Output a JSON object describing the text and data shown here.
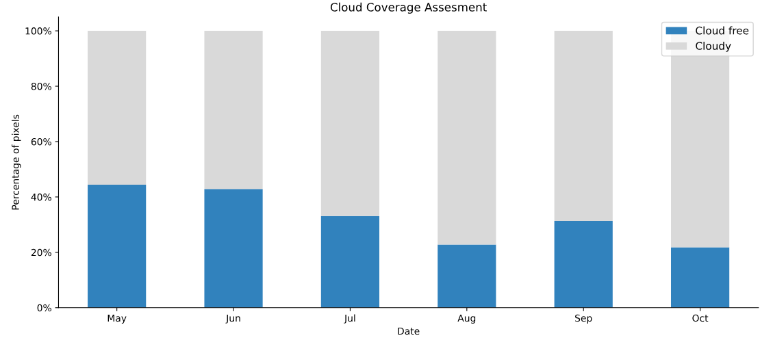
{
  "chart_data": {
    "type": "bar",
    "title": "Cloud Coverage Assesment",
    "xlabel": "Date",
    "ylabel": "Percentage of pixels",
    "categories": [
      "May",
      "Jun",
      "Jul",
      "Aug",
      "Sep",
      "Oct"
    ],
    "stacked": true,
    "series": [
      {
        "name": "Cloud free",
        "color": "#3182bd",
        "values": [
          44.4,
          42.9,
          33.1,
          22.8,
          31.3,
          21.8
        ]
      },
      {
        "name": "Cloudy",
        "color": "#d9d9d9",
        "values": [
          55.6,
          57.1,
          66.9,
          77.2,
          68.7,
          78.2
        ]
      }
    ],
    "ylim": [
      0,
      105
    ],
    "yticks": [
      {
        "value": 0,
        "label": "0%"
      },
      {
        "value": 20,
        "label": "20%"
      },
      {
        "value": 40,
        "label": "40%"
      },
      {
        "value": 60,
        "label": "60%"
      },
      {
        "value": 80,
        "label": "80%"
      },
      {
        "value": 100,
        "label": "100%"
      }
    ],
    "legend": "top right",
    "grid": false
  }
}
